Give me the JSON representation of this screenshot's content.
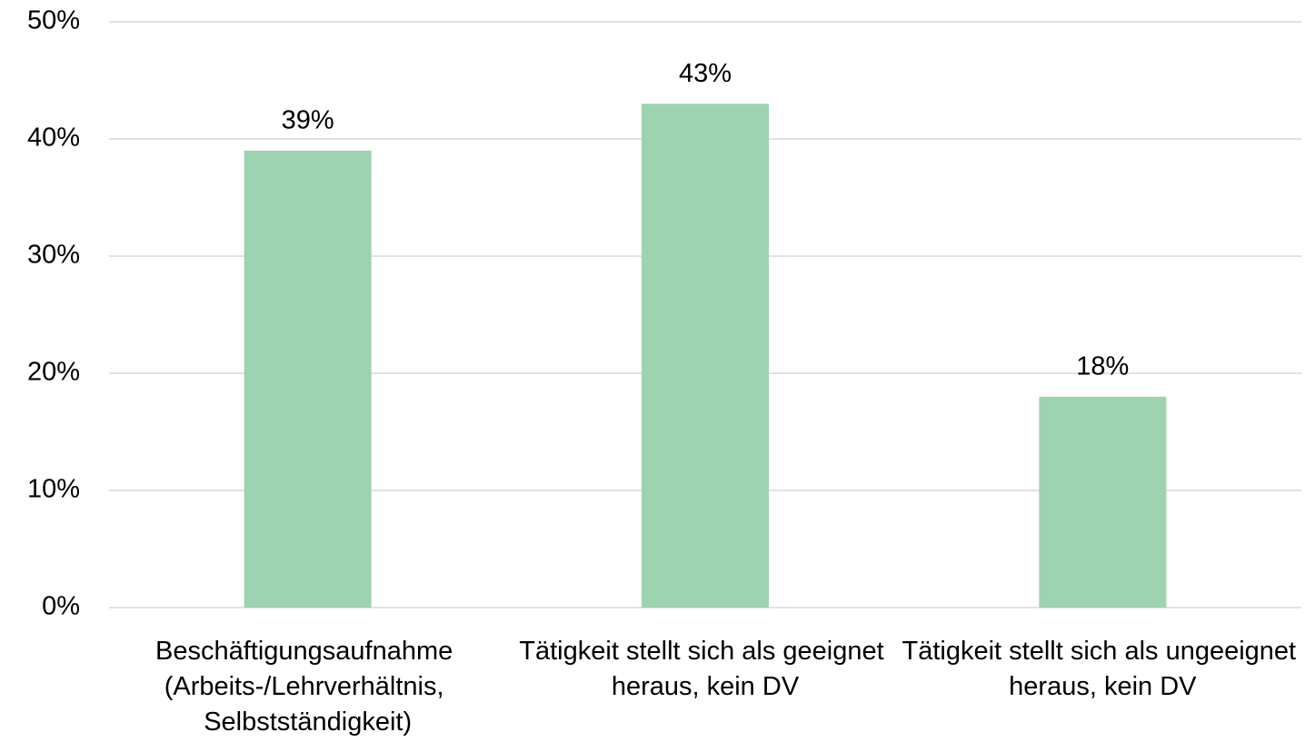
{
  "chart_data": {
    "type": "bar",
    "categories": [
      "Beschäftigungsaufnahme (Arbeits-/Lehrverhältnis, Selbstständigkeit)",
      "Tätigkeit stellt sich als geeignet heraus, kein DV",
      "Tätigkeit stellt sich als ungeeignet heraus, kein DV"
    ],
    "values": [
      39,
      43,
      18
    ],
    "value_labels": [
      "39%",
      "43%",
      "18%"
    ],
    "color": "#9dd3b0",
    "ylim": [
      0,
      50
    ],
    "yticks": [
      {
        "value": 0,
        "label": "0%"
      },
      {
        "value": 10,
        "label": "10%"
      },
      {
        "value": 20,
        "label": "20%"
      },
      {
        "value": 30,
        "label": "30%"
      },
      {
        "value": 40,
        "label": "40%"
      },
      {
        "value": 50,
        "label": "50%"
      }
    ],
    "grid": true
  }
}
